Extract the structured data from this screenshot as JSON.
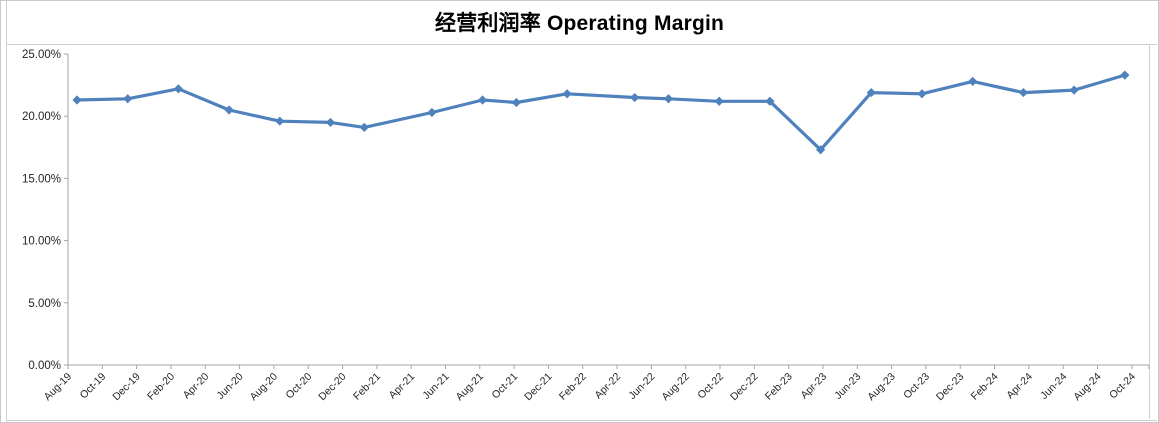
{
  "window": {
    "background": "#ffffff",
    "frame_color": "#cfcfcf"
  },
  "chart": {
    "title": "经营利润率 Operating Margin",
    "colors": {
      "series": "#4F81BD",
      "axis": "#a6a6a6",
      "tick_label": "#262626",
      "title": "#000000"
    }
  },
  "chart_data": {
    "type": "line",
    "title": "经营利润率 Operating Margin",
    "xlabel": "",
    "ylabel": "",
    "ylim": [
      0,
      25
    ],
    "y_tick_labels": [
      "0.00%",
      "5.00%",
      "10.00%",
      "15.00%",
      "20.00%",
      "25.00%"
    ],
    "y_tick_values": [
      0,
      5,
      10,
      15,
      20,
      25
    ],
    "x_tick_labels": [
      "Aug-19",
      "Oct-19",
      "Dec-19",
      "Feb-20",
      "Apr-20",
      "Jun-20",
      "Aug-20",
      "Oct-20",
      "Dec-20",
      "Feb-21",
      "Apr-21",
      "Jun-21",
      "Aug-21",
      "Oct-21",
      "Dec-21",
      "Feb-22",
      "Apr-22",
      "Jun-22",
      "Aug-22",
      "Oct-22",
      "Dec-22",
      "Feb-23",
      "Apr-23",
      "Jun-23",
      "Aug-23",
      "Oct-23",
      "Dec-23",
      "Feb-24",
      "Apr-24",
      "Jun-24",
      "Aug-24",
      "Oct-24"
    ],
    "x_tick_month_step": 2,
    "x_axis_total_months": 63,
    "grid": false,
    "legend_position": "none",
    "marker": "diamond",
    "series": [
      {
        "name": "Operating Margin",
        "points": [
          {
            "period": "Aug-19",
            "month_index": 0,
            "value": 21.3
          },
          {
            "period": "Nov-19",
            "month_index": 3,
            "value": 21.4
          },
          {
            "period": "Feb-20",
            "month_index": 6,
            "value": 22.2
          },
          {
            "period": "May-20",
            "month_index": 9,
            "value": 20.5
          },
          {
            "period": "Aug-20",
            "month_index": 12,
            "value": 19.6
          },
          {
            "period": "Nov-20",
            "month_index": 15,
            "value": 19.5
          },
          {
            "period": "Jan-21",
            "month_index": 17,
            "value": 19.1
          },
          {
            "period": "May-21",
            "month_index": 21,
            "value": 20.3
          },
          {
            "period": "Aug-21",
            "month_index": 24,
            "value": 21.3
          },
          {
            "period": "Oct-21",
            "month_index": 26,
            "value": 21.1
          },
          {
            "period": "Jan-22",
            "month_index": 29,
            "value": 21.8
          },
          {
            "period": "May-22",
            "month_index": 33,
            "value": 21.5
          },
          {
            "period": "Jul-22",
            "month_index": 35,
            "value": 21.4
          },
          {
            "period": "Oct-22",
            "month_index": 38,
            "value": 21.2
          },
          {
            "period": "Jan-23",
            "month_index": 41,
            "value": 21.2
          },
          {
            "period": "Apr-23",
            "month_index": 44,
            "value": 17.3
          },
          {
            "period": "Jul-23",
            "month_index": 47,
            "value": 21.9
          },
          {
            "period": "Oct-23",
            "month_index": 50,
            "value": 21.8
          },
          {
            "period": "Jan-24",
            "month_index": 53,
            "value": 22.8
          },
          {
            "period": "Apr-24",
            "month_index": 56,
            "value": 21.9
          },
          {
            "period": "Jul-24",
            "month_index": 59,
            "value": 22.1
          },
          {
            "period": "Oct-24",
            "month_index": 62,
            "value": 23.3
          }
        ]
      }
    ]
  }
}
